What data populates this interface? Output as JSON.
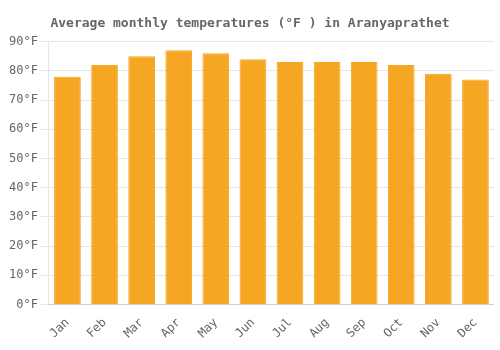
{
  "chart_data": {
    "type": "bar",
    "title": "Average monthly temperatures (°F ) in Aranyaprathet",
    "categories": [
      "Jan",
      "Feb",
      "Mar",
      "Apr",
      "May",
      "Jun",
      "Jul",
      "Aug",
      "Sep",
      "Oct",
      "Nov",
      "Dec"
    ],
    "values": [
      78,
      82,
      85,
      87,
      86,
      84,
      83,
      83,
      83,
      82,
      79,
      77
    ],
    "color": "#F5A623",
    "ylim": [
      0,
      90
    ],
    "yticks": [
      {
        "value": 0,
        "label": "0°F"
      },
      {
        "value": 10,
        "label": "10°F"
      },
      {
        "value": 20,
        "label": "20°F"
      },
      {
        "value": 30,
        "label": "30°F"
      },
      {
        "value": 40,
        "label": "40°F"
      },
      {
        "value": 50,
        "label": "50°F"
      },
      {
        "value": 60,
        "label": "60°F"
      },
      {
        "value": 70,
        "label": "70°F"
      },
      {
        "value": 80,
        "label": "80°F"
      },
      {
        "value": 90,
        "label": "90°F"
      }
    ],
    "grid": true
  }
}
